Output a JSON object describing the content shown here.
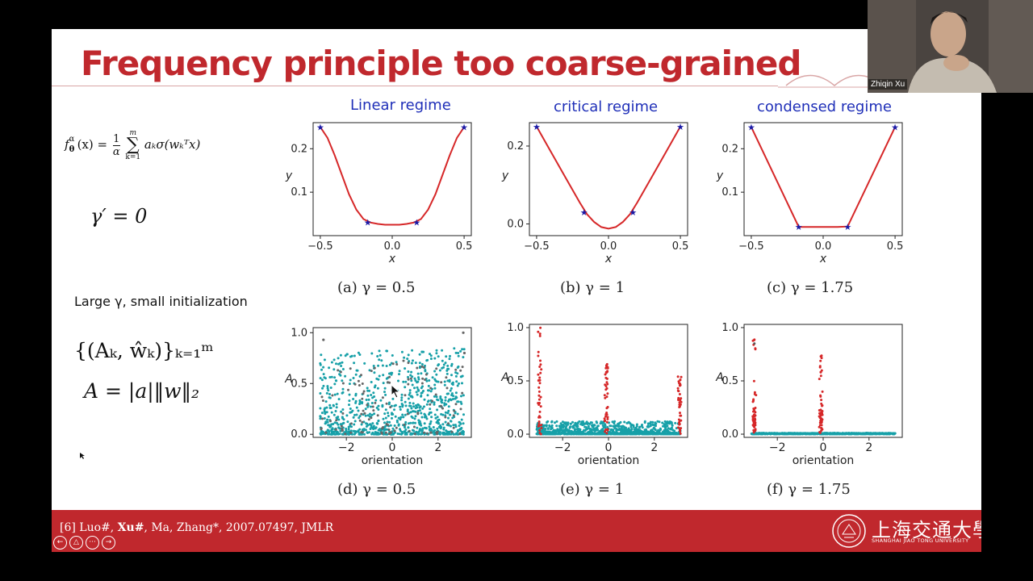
{
  "slide": {
    "title": "Frequency principle too coarse-grained",
    "regimes": [
      "Linear regime",
      "critical regime",
      "condensed regime"
    ],
    "captions_top": [
      "(a) γ = 0.5",
      "(b) γ = 1",
      "(c) γ = 1.75"
    ],
    "captions_bottom": [
      "(d) γ = 0.5",
      "(e) γ = 1",
      "(f) γ = 1.75"
    ],
    "gamma_prime": "γ′ = 0",
    "large_gamma_text": "Large γ, small initialization",
    "set_formula": "{(Aₖ, ŵₖ)}ₖ₌₁ᵐ",
    "A_formula": "A = |a|‖w‖₂",
    "f_formula_lhs": "f",
    "f_formula_sup": "α",
    "f_formula_sub": "θ",
    "f_formula_x": "(x) =",
    "f_formula_frac_num": "1",
    "f_formula_frac_den": "α",
    "f_formula_sum": "∑",
    "f_formula_sum_top": "m",
    "f_formula_sum_bottom": "k=1",
    "f_formula_rhs": "aₖσ(wₖᵀx)"
  },
  "footer": {
    "ref_prefix": "[6] Luo#, ",
    "ref_bold": "Xu#",
    "ref_suffix": ",  Ma, Zhang*, 2007.07497, JMLR",
    "university_cn": "上海交通大學",
    "university_en": "SHANGHAI JIAO TONG UNIVERSITY",
    "nav": [
      "←",
      "△",
      "···",
      "→"
    ]
  },
  "video": {
    "name": "Zhiqin Xu"
  },
  "colors": {
    "accent": "#c0282d",
    "curve": "#d62728",
    "star": "#1a1aa6",
    "teal": "#17a0a8",
    "regime": "#1f2fb8"
  },
  "chart_data": [
    {
      "type": "line",
      "xlabel": "x",
      "ylabel": "y",
      "xlim": [
        -0.55,
        0.55
      ],
      "ylim": [
        0,
        0.26
      ],
      "xticks": [
        -0.5,
        0.0,
        0.5
      ],
      "yticks": [
        0.1,
        0.2
      ],
      "stars_x": [
        -0.5,
        -0.17,
        0.17,
        0.5
      ],
      "stars_y": [
        0.25,
        0.031,
        0.031,
        0.25
      ],
      "x": [
        -0.5,
        -0.45,
        -0.4,
        -0.35,
        -0.3,
        -0.25,
        -0.2,
        -0.15,
        -0.1,
        -0.05,
        0,
        0.05,
        0.1,
        0.15,
        0.2,
        0.25,
        0.3,
        0.35,
        0.4,
        0.45,
        0.5
      ],
      "y": [
        0.25,
        0.225,
        0.185,
        0.14,
        0.095,
        0.06,
        0.038,
        0.03,
        0.027,
        0.025,
        0.025,
        0.025,
        0.027,
        0.03,
        0.038,
        0.06,
        0.095,
        0.14,
        0.185,
        0.225,
        0.25
      ]
    },
    {
      "type": "line",
      "xlabel": "x",
      "ylabel": "y",
      "xlim": [
        -0.55,
        0.55
      ],
      "ylim": [
        -0.03,
        0.26
      ],
      "xticks": [
        -0.5,
        0.0,
        0.5
      ],
      "yticks": [
        0.0,
        0.2
      ],
      "stars_x": [
        -0.5,
        -0.17,
        0.17,
        0.5
      ],
      "stars_y": [
        0.25,
        0.03,
        0.03,
        0.25
      ],
      "x": [
        -0.5,
        -0.4,
        -0.3,
        -0.2,
        -0.15,
        -0.1,
        -0.05,
        0,
        0.05,
        0.1,
        0.15,
        0.2,
        0.3,
        0.4,
        0.5
      ],
      "y": [
        0.25,
        0.185,
        0.12,
        0.055,
        0.025,
        0.005,
        -0.008,
        -0.012,
        -0.008,
        0.005,
        0.025,
        0.055,
        0.12,
        0.185,
        0.25
      ]
    },
    {
      "type": "line",
      "xlabel": "x",
      "ylabel": "y",
      "xlim": [
        -0.55,
        0.55
      ],
      "ylim": [
        0,
        0.26
      ],
      "xticks": [
        -0.5,
        0.0,
        0.5
      ],
      "yticks": [
        0.1,
        0.2
      ],
      "stars_x": [
        -0.5,
        -0.17,
        0.17,
        0.5
      ],
      "stars_y": [
        0.25,
        0.02,
        0.02,
        0.25
      ],
      "x": [
        -0.5,
        -0.17,
        -0.1,
        0,
        0.1,
        0.17,
        0.5
      ],
      "y": [
        0.25,
        0.02,
        0.02,
        0.02,
        0.02,
        0.021,
        0.25
      ]
    },
    {
      "type": "scatter",
      "xlabel": "orientation",
      "ylabel": "A",
      "xlim": [
        -3.45,
        3.45
      ],
      "ylim": [
        -0.03,
        1.05
      ],
      "xticks": [
        -2,
        0,
        2
      ],
      "yticks": [
        0.0,
        0.5,
        1.0
      ],
      "pattern": "diffuse"
    },
    {
      "type": "scatter",
      "xlabel": "orientation",
      "ylabel": "A",
      "xlim": [
        -3.45,
        3.45
      ],
      "ylim": [
        -0.03,
        1.03
      ],
      "xticks": [
        -2,
        0,
        2
      ],
      "yticks": [
        0.0,
        0.5,
        1.0
      ],
      "pattern": "critical",
      "peak_x": [
        -3.0,
        -0.1,
        3.1
      ]
    },
    {
      "type": "scatter",
      "xlabel": "orientation",
      "ylabel": "A",
      "xlim": [
        -3.45,
        3.45
      ],
      "ylim": [
        -0.03,
        1.03
      ],
      "xticks": [
        -2,
        0,
        2
      ],
      "yticks": [
        0.0,
        0.5,
        1.0
      ],
      "pattern": "condensed",
      "peak_x": [
        -3.0,
        -0.1
      ]
    }
  ]
}
